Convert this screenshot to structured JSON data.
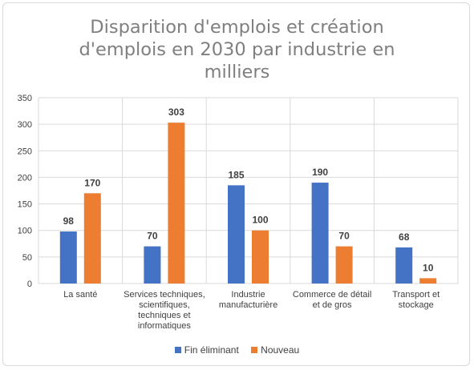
{
  "chart_data": {
    "type": "bar",
    "title_lines": [
      "Disparition d'emplois et création",
      "d'emplois en 2030 par industrie en",
      "milliers"
    ],
    "categories": [
      [
        "La santé"
      ],
      [
        "Services techniques,",
        "scientifiques,",
        "techniques et",
        "informatiques"
      ],
      [
        "Industrie",
        "manufacturière"
      ],
      [
        "Commerce de détail",
        "et de gros"
      ],
      [
        "Transport et",
        "stockage"
      ]
    ],
    "series": [
      {
        "name": "Fin éliminant",
        "color": "#4472c4",
        "values": [
          98,
          70,
          185,
          190,
          68
        ]
      },
      {
        "name": "Nouveau",
        "color": "#ed7d31",
        "values": [
          170,
          303,
          100,
          70,
          10
        ]
      }
    ],
    "ylim": [
      0,
      350
    ],
    "yticks": [
      0,
      50,
      100,
      150,
      200,
      250,
      300,
      350
    ],
    "grid": true,
    "legend_position": "bottom",
    "data_labels": true
  }
}
